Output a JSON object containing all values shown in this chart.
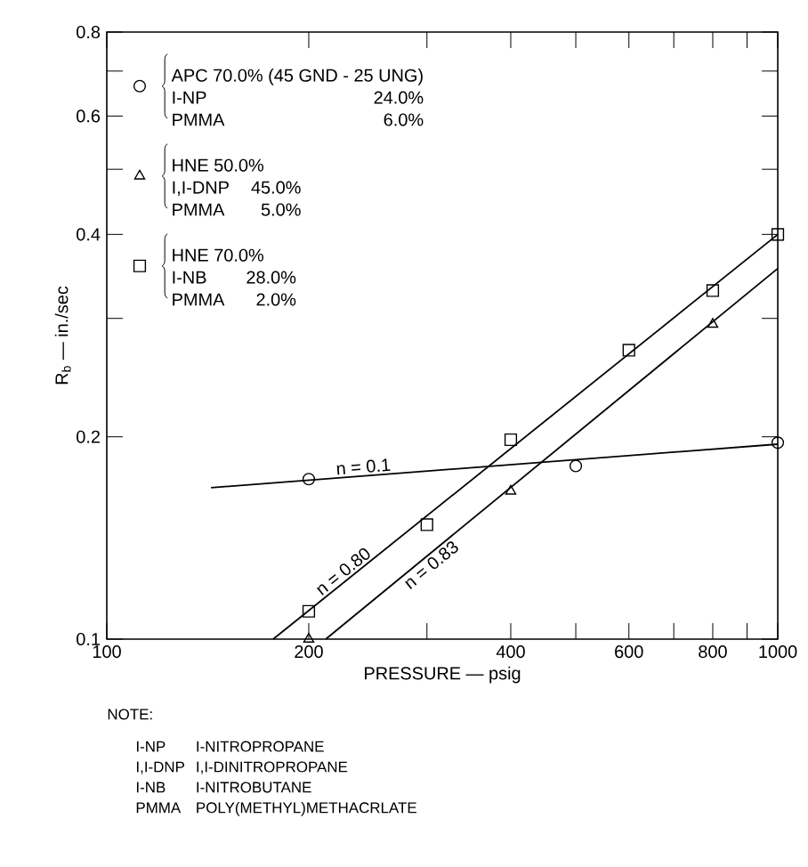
{
  "chart_data": {
    "type": "scatter",
    "xlabel": "PRESSURE — psig",
    "ylabel": "R$_{b}$ — in./sec",
    "log": "xy",
    "grid": false,
    "legend": "top left",
    "xlim": [
      100,
      1000
    ],
    "ylim": [
      0.1,
      0.8
    ],
    "xticks": [
      100,
      200,
      {
        "value": 300,
        "label": null
      },
      400,
      {
        "value": 500,
        "label": null
      },
      600,
      {
        "value": 700,
        "label": null
      },
      800,
      {
        "value": 900,
        "label": null
      },
      1000
    ],
    "yticks": [
      0.1,
      0.2,
      {
        "value": 0.3,
        "label": null
      },
      0.4,
      {
        "value": 0.5,
        "label": null
      },
      0.6,
      {
        "value": 0.7,
        "label": null
      },
      0.8
    ],
    "series": [
      {
        "name": "APC 70.0% (45 GND - 25 UNG)",
        "marker": "circle",
        "color": "#000000",
        "x": [
          200,
          500,
          1000
        ],
        "values": [
          0.173,
          0.181,
          0.196
        ]
      },
      {
        "name": "HNE 50.0%",
        "marker": "triangle",
        "color": "#000000",
        "x": [
          200,
          400,
          800
        ],
        "values": [
          0.1,
          0.166,
          0.294
        ]
      },
      {
        "name": "HNE 70.0%",
        "marker": "square",
        "color": "#000000",
        "x": [
          200,
          300,
          400,
          600,
          800,
          1000
        ],
        "values": [
          0.11,
          0.148,
          0.198,
          0.269,
          0.33,
          0.4
        ]
      },
      {
        "type": "line",
        "marker": "none",
        "line_style": "solid",
        "color": "#000000",
        "x": [
          143,
          1000
        ],
        "values": [
          0.168,
          0.195
        ]
      },
      {
        "type": "line",
        "marker": "none",
        "line_style": "solid",
        "color": "#000000",
        "x": [
          177,
          1000
        ],
        "values": [
          0.1,
          0.4
        ]
      },
      {
        "type": "line",
        "marker": "none",
        "line_style": "solid",
        "color": "#000000",
        "x": [
          212,
          1000
        ],
        "values": [
          0.1,
          0.356
        ]
      }
    ],
    "annotations": [
      "I-NP",
      "24.0%",
      "PMMA",
      "6.0%",
      "I,I-DNP",
      "45.0%",
      "PMMA",
      "5.0%",
      "I-NB",
      "28.0%",
      "PMMA",
      "2.0%",
      "n = 0.1",
      "n = 0.80",
      "n = 0.83",
      "NOTE:",
      "I-NP",
      "I-NITROPROPANE",
      "I,I-DNP",
      "I,I-DINITROPROPANE",
      "I-NB",
      "I-NITROBUTANE",
      "PMMA",
      "POLY(METHYL)METHACRLATE"
    ]
  }
}
